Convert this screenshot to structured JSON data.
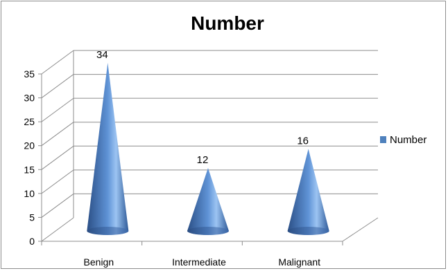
{
  "chart_data": {
    "type": "bar",
    "style": "3d-cone",
    "title": "Number",
    "categories": [
      "Benign",
      "Intermediate",
      "Malignant"
    ],
    "series": [
      {
        "name": "Number",
        "values": [
          34,
          12,
          16
        ],
        "color": "#4f81bd"
      }
    ],
    "data_labels": [
      "34",
      "12",
      "16"
    ],
    "ylim": [
      0,
      35
    ],
    "y_ticks": [
      "0",
      "5",
      "10",
      "15",
      "20",
      "25",
      "30",
      "35"
    ],
    "xlabel": "",
    "ylabel": "",
    "grid": true,
    "legend": "right"
  }
}
